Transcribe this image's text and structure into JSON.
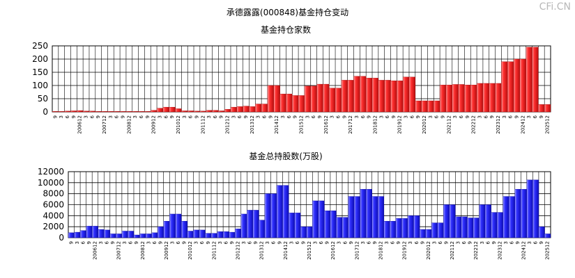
{
  "page": {
    "title": "承德露露(000848)基金持仓变动",
    "watermark": "CFi.CN"
  },
  "chart_data": [
    {
      "type": "bar",
      "title": "基金持仓家数",
      "ylim": [
        0,
        250
      ],
      "yticks": [
        "0",
        "50",
        "100",
        "150",
        "200",
        "250"
      ],
      "grid": true,
      "bar_color": "#e8272a",
      "categories": [
        "9",
        "3",
        "6",
        "9",
        "200612",
        "3",
        "6",
        "9",
        "200712",
        "3",
        "6",
        "9",
        "200812",
        "3",
        "6",
        "9",
        "200912",
        "3",
        "6",
        "9",
        "201012",
        "3",
        "6",
        "9",
        "201112",
        "3",
        "6",
        "9",
        "201212",
        "3",
        "6",
        "9",
        "201312",
        "3",
        "6",
        "9",
        "201412",
        "3",
        "6",
        "9",
        "201512",
        "3",
        "6",
        "9",
        "201612",
        "3",
        "6",
        "9",
        "201712",
        "3",
        "6",
        "9",
        "201812",
        "3",
        "6",
        "9",
        "201912",
        "3",
        "6",
        "9",
        "202012",
        "3",
        "6",
        "9",
        "202112",
        "3",
        "6",
        "9",
        "202212",
        "3",
        "6",
        "9",
        "202312",
        "3",
        "6",
        "9",
        "202412",
        "3",
        "6",
        "9",
        "202512"
      ],
      "values": [
        2,
        2,
        3,
        4,
        5,
        3,
        3,
        2,
        2,
        2,
        2,
        2,
        2,
        2,
        2,
        2,
        6,
        14,
        18,
        18,
        12,
        4,
        4,
        3,
        3,
        6,
        6,
        4,
        10,
        18,
        20,
        22,
        20,
        30,
        30,
        100,
        100,
        68,
        68,
        62,
        62,
        98,
        98,
        105,
        105,
        90,
        90,
        120,
        120,
        135,
        135,
        128,
        128,
        120,
        120,
        118,
        118,
        132,
        132,
        42,
        42,
        42,
        42,
        102,
        102,
        104,
        104,
        102,
        102,
        108,
        108,
        108,
        108,
        190,
        190,
        200,
        200,
        245,
        245,
        28,
        28
      ]
    },
    {
      "type": "bar",
      "title": "基金总持股数(万股)",
      "ylim": [
        0,
        12000
      ],
      "yticks": [
        "0",
        "2000",
        "4000",
        "6000",
        "8000",
        "10000",
        "12000"
      ],
      "grid": true,
      "bar_color": "#3a3ae8",
      "categories": [
        "9",
        "3",
        "6",
        "9",
        "200612",
        "3",
        "6",
        "9",
        "200712",
        "3",
        "6",
        "9",
        "200812",
        "3",
        "6",
        "9",
        "200912",
        "3",
        "6",
        "9",
        "201012",
        "3",
        "6",
        "9",
        "201112",
        "3",
        "6",
        "9",
        "201212",
        "3",
        "6",
        "9",
        "201312",
        "3",
        "6",
        "9",
        "201412",
        "3",
        "6",
        "9",
        "201512",
        "3",
        "6",
        "9",
        "201612",
        "3",
        "6",
        "9",
        "201712",
        "3",
        "6",
        "9",
        "201812",
        "3",
        "6",
        "9",
        "201912",
        "3",
        "6",
        "9",
        "202012",
        "3",
        "6",
        "9",
        "202112",
        "3",
        "6",
        "9",
        "202212",
        "3",
        "6",
        "9",
        "202312",
        "3",
        "6",
        "9",
        "202412",
        "3",
        "6",
        "9",
        "202512"
      ],
      "values": [
        900,
        1000,
        1300,
        2100,
        2100,
        1500,
        1400,
        700,
        700,
        1200,
        1200,
        500,
        700,
        700,
        900,
        2000,
        3000,
        4300,
        4300,
        3000,
        1200,
        1400,
        1400,
        800,
        800,
        1100,
        1100,
        1000,
        1600,
        4300,
        5000,
        5000,
        3200,
        8000,
        8000,
        9500,
        9500,
        4500,
        4500,
        2000,
        2000,
        6700,
        6700,
        4900,
        4900,
        3700,
        3700,
        7500,
        7500,
        8800,
        8800,
        7500,
        7500,
        3000,
        3000,
        3500,
        3500,
        4000,
        4000,
        1500,
        1500,
        2700,
        2700,
        6000,
        6000,
        3800,
        3800,
        3600,
        3600,
        6000,
        6000,
        4600,
        4600,
        7500,
        7500,
        8800,
        8800,
        10500,
        10500,
        2000,
        700
      ]
    }
  ]
}
